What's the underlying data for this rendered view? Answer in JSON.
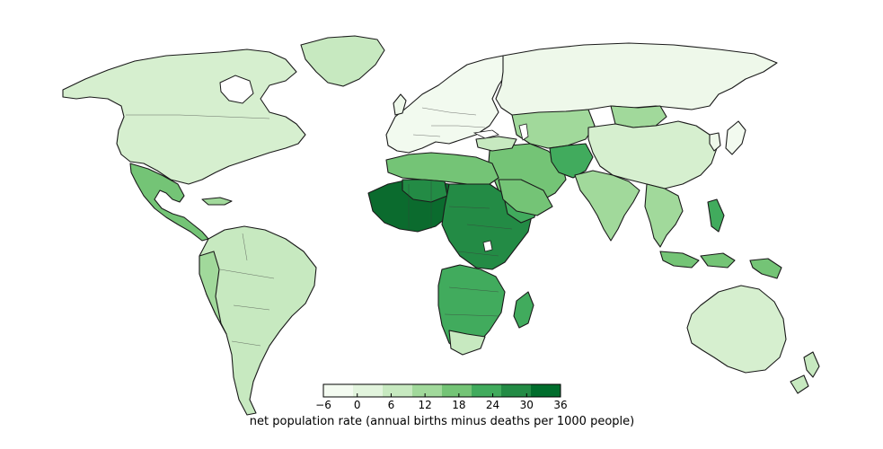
{
  "colorbar": {
    "label": "net population rate (annual births minus deaths per 1000 people)",
    "ticks": [
      "−6",
      "0",
      "6",
      "12",
      "18",
      "24",
      "30",
      "36"
    ],
    "min": -6,
    "max": 36,
    "colors": [
      "#f4fbf1",
      "#e2f4dd",
      "#c7e9c0",
      "#a1d99b",
      "#74c476",
      "#41ab5d",
      "#238b45",
      "#006d2c"
    ]
  },
  "map": {
    "colors": {
      "very_low": "#eef8ea",
      "low": "#d9f0d3",
      "mid_low": "#c7e9c0",
      "mid": "#a1d99b",
      "mid_high": "#74c476",
      "high": "#41ab5d",
      "very_high": "#238b45",
      "max": "#0b6b2e"
    }
  }
}
